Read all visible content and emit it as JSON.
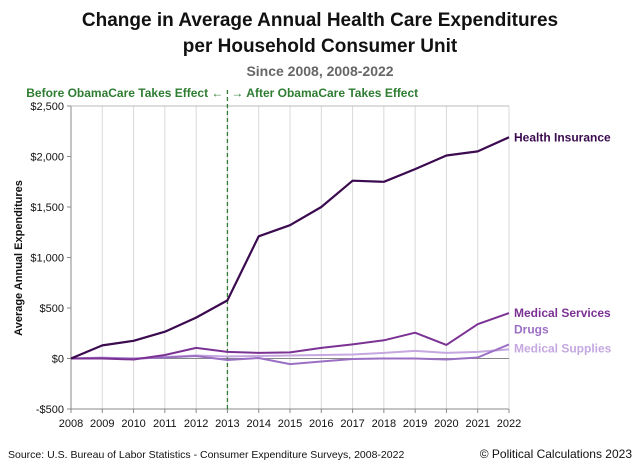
{
  "chart_data": {
    "type": "line",
    "title_line1": "Change in Average Annual Health Care Expenditures",
    "title_line2": "per Household Consumer Unit",
    "subtitle": "Since 2008, 2008-2022",
    "ylabel": "Average Annual Expenditures",
    "xlabel": "",
    "x": [
      2008,
      2009,
      2010,
      2011,
      2012,
      2013,
      2014,
      2015,
      2016,
      2017,
      2018,
      2019,
      2020,
      2021,
      2022
    ],
    "ylim": [
      -500,
      2500
    ],
    "y_ticks": [
      -500,
      0,
      500,
      1000,
      1500,
      2000,
      2500
    ],
    "y_tick_labels": [
      "-$500",
      "$0",
      "$500",
      "$1,000",
      "$1,500",
      "$2,000",
      "$2,500"
    ],
    "grid": "vertical",
    "series": [
      {
        "name": "Health Insurance",
        "color": "#3b0a4f",
        "values": [
          0,
          130,
          175,
          265,
          405,
          575,
          1210,
          1320,
          1500,
          1760,
          1750,
          1875,
          2010,
          2050,
          2190
        ]
      },
      {
        "name": "Medical Services",
        "color": "#7b3294",
        "values": [
          0,
          0,
          -10,
          35,
          105,
          65,
          55,
          60,
          105,
          140,
          180,
          255,
          135,
          340,
          450
        ]
      },
      {
        "name": "Drugs",
        "color": "#9b6fc4",
        "values": [
          0,
          5,
          0,
          10,
          25,
          -15,
          5,
          -55,
          -30,
          -5,
          0,
          0,
          -10,
          10,
          140
        ]
      },
      {
        "name": "Medical Supplies",
        "color": "#c5a8e0",
        "values": [
          0,
          10,
          -5,
          15,
          30,
          20,
          25,
          30,
          35,
          40,
          55,
          75,
          55,
          65,
          90
        ]
      }
    ],
    "annotation": {
      "year": 2013,
      "left_text": "Before ObamaCare Takes Effect ←",
      "right_text": "→ After ObamaCare Takes Effect",
      "color": "#2e7d32"
    },
    "source": "Source: U.S. Bureau of Labor Statistics - Consumer Expenditure Surveys, 2008-2022",
    "credit": "© Political Calculations 2023"
  }
}
